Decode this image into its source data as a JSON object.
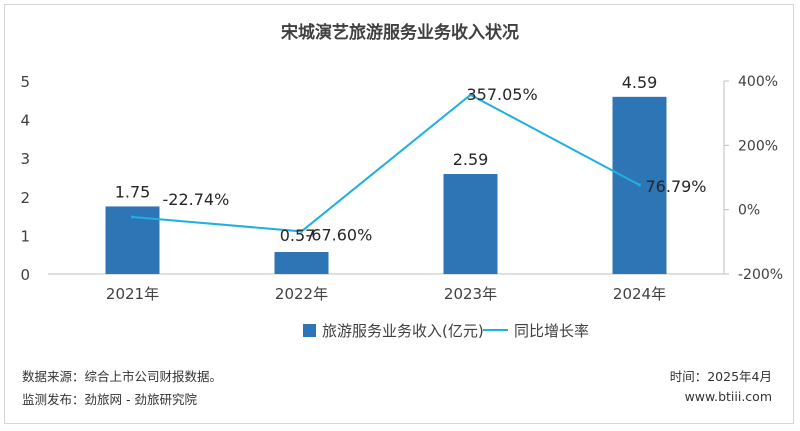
{
  "chart_data": {
    "type": "bar",
    "title": "宋城演艺旅游服务业务收入状况",
    "categories": [
      "2021年",
      "2022年",
      "2023年",
      "2024年"
    ],
    "series": [
      {
        "name": "旅游服务业务收入(亿元)",
        "type": "bar",
        "axis": "left",
        "values": [
          1.75,
          0.57,
          2.59,
          4.59
        ],
        "labels": [
          "1.75",
          "0.57",
          "2.59",
          "4.59"
        ],
        "color": "#2e75b6"
      },
      {
        "name": "同比增长率",
        "type": "line",
        "axis": "right",
        "values": [
          -22.74,
          -67.6,
          357.05,
          76.79
        ],
        "labels": [
          "-22.74%",
          "-67.60%",
          "357.05%",
          "76.79%"
        ],
        "color": "#1fb0e0"
      }
    ],
    "y_left": {
      "min": 0,
      "max": 5,
      "ticks": [
        "0",
        "1",
        "2",
        "3",
        "4",
        "5"
      ]
    },
    "y_right": {
      "min": -200,
      "max": 400,
      "ticks": [
        "-200%",
        "0%",
        "200%",
        "400%"
      ]
    },
    "grid": false,
    "legend": "bottom"
  },
  "footer": {
    "source": "数据来源：综合上市公司财报数据。",
    "publisher": "监测发布：劲旅网 - 劲旅研究院",
    "time": "时间：2025年4月",
    "site": "www.btiii.com"
  }
}
